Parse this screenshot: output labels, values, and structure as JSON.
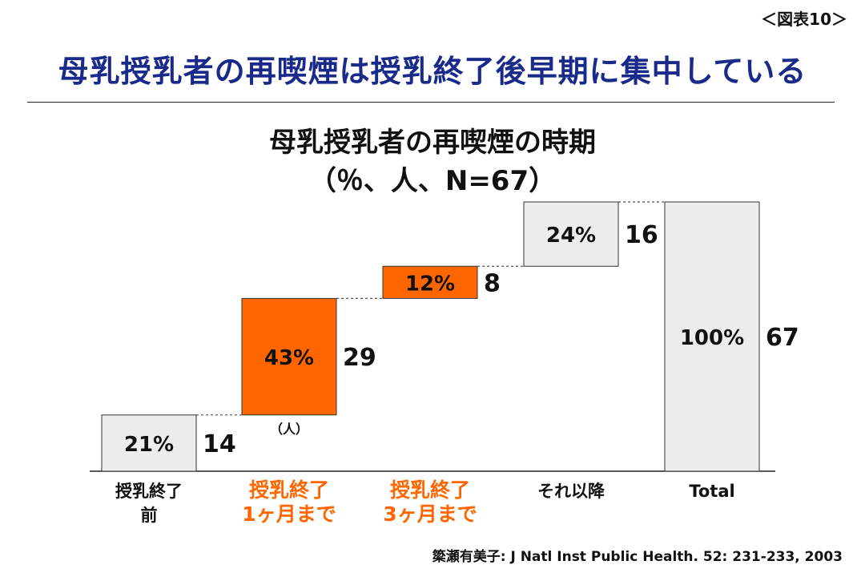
{
  "header": {
    "figure_label": "＜図表10＞",
    "title": "母乳授乳者の再喫煙は授乳終了後早期に集中している"
  },
  "chart_data": {
    "type": "bar",
    "subtype": "waterfall",
    "title": "母乳授乳者の再喫煙の時期",
    "subtitle": "（％、人、N=67）",
    "unit_note": "（人）",
    "categories": [
      "授乳終了\n前",
      "授乳終了\n1ヶ月まで",
      "授乳終了\n3ヶ月まで",
      "それ以降",
      "Total"
    ],
    "values": [
      14,
      29,
      8,
      16,
      67
    ],
    "percent_labels": [
      "21%",
      "43%",
      "12%",
      "24%",
      "100%"
    ],
    "is_total": [
      false,
      false,
      false,
      false,
      true
    ],
    "ylim": [
      0,
      67
    ],
    "colors": {
      "normal_fill": "#ececec",
      "highlight_fill": "#ff6600",
      "highlight_text": "#ff6600",
      "border": "#333333",
      "connector": "#555555"
    },
    "highlight": [
      false,
      true,
      true,
      false,
      false
    ]
  },
  "footer": {
    "source": "簗瀬有美子: J Natl Inst Public Health. 52: 231-233, 2003"
  }
}
